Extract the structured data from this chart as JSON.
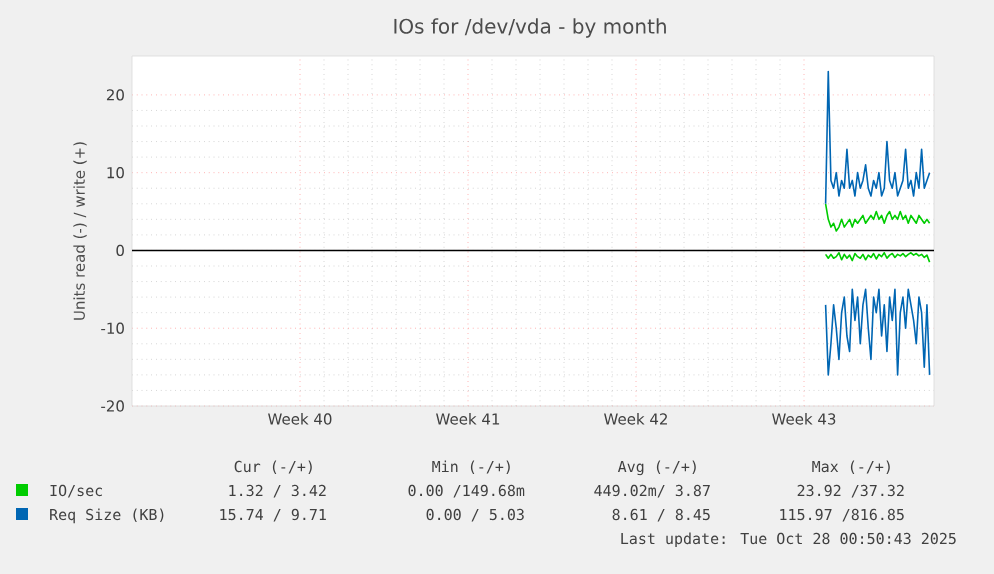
{
  "chart_data": {
    "type": "line",
    "title": "IOs for /dev/vda - by month",
    "ylabel": "Units read (-) / write (+)",
    "x": [
      "2025-10-24T09:36",
      "2025-10-24T12:16",
      "2025-10-24T14:56",
      "2025-10-24T17:36",
      "2025-10-24T20:16",
      "2025-10-24T22:56",
      "2025-10-25T01:36",
      "2025-10-25T04:16",
      "2025-10-25T06:56",
      "2025-10-25T09:36",
      "2025-10-25T12:16",
      "2025-10-25T14:56",
      "2025-10-25T17:36",
      "2025-10-25T20:16",
      "2025-10-25T22:56",
      "2025-10-26T01:36",
      "2025-10-26T04:16",
      "2025-10-26T06:56",
      "2025-10-26T09:36",
      "2025-10-26T12:16",
      "2025-10-26T14:56",
      "2025-10-26T17:36",
      "2025-10-26T20:16",
      "2025-10-26T22:56",
      "2025-10-27T01:36",
      "2025-10-27T04:16",
      "2025-10-27T06:56",
      "2025-10-27T09:36",
      "2025-10-27T12:16",
      "2025-10-27T14:56",
      "2025-10-27T17:36",
      "2025-10-27T20:16",
      "2025-10-27T22:56",
      "2025-10-28T01:36",
      "2025-10-28T04:16",
      "2025-10-28T06:56",
      "2025-10-28T09:36",
      "2025-10-28T12:16",
      "2025-10-28T14:56",
      "2025-10-28T17:36"
    ],
    "series": [
      {
        "name": "IO/sec",
        "color": "#00cc00",
        "values": [
          6,
          4,
          3,
          3.5,
          2.5,
          3,
          4,
          3,
          3.5,
          4,
          3,
          4,
          3.5,
          4,
          4.5,
          3.5,
          4,
          4.5,
          4,
          5,
          4,
          4.5,
          3.5,
          4.5,
          5,
          4,
          4.5,
          4,
          5,
          4,
          4.5,
          3.5,
          4.5,
          4,
          3.5,
          4.5,
          4,
          3.5,
          4,
          3.5
        ]
      },
      {
        "color": "#00cc00",
        "values": [
          -0.5,
          -1,
          -0.5,
          -1,
          -0.8,
          -0.3,
          -1.2,
          -0.5,
          -1,
          -0.6,
          -1.3,
          -0.4,
          -0.8,
          -1,
          -0.5,
          -1.2,
          -0.6,
          -0.9,
          -0.4,
          -1.1,
          -0.5,
          -0.8,
          -0.3,
          -1,
          -0.6,
          -0.4,
          -0.9,
          -0.5,
          -0.7,
          -0.4,
          -0.8,
          -0.5,
          -0.3,
          -0.6,
          -0.4,
          -0.7,
          -0.5,
          -0.9,
          -0.6,
          -1.5
        ]
      },
      {
        "name": "Req Size (KB)",
        "color": "#0066b3",
        "values": [
          6,
          23,
          9,
          8,
          10,
          7,
          9,
          8,
          13,
          8,
          9,
          7,
          10,
          8,
          9,
          11,
          8,
          7,
          9,
          8,
          10,
          7,
          8,
          14,
          9,
          8,
          10,
          7,
          8,
          9,
          13,
          8,
          9,
          7,
          10,
          8,
          13,
          8,
          9,
          10
        ]
      },
      {
        "color": "#0066b3",
        "values": [
          -7,
          -16,
          -12,
          -7,
          -10,
          -14,
          -8,
          -6,
          -11,
          -13,
          -5,
          -9,
          -6,
          -12,
          -7,
          -5,
          -10,
          -14,
          -6,
          -8,
          -5,
          -11,
          -7,
          -13,
          -6,
          -9,
          -5,
          -16,
          -8,
          -6,
          -10,
          -5,
          -7,
          -9,
          -12,
          -6,
          -8,
          -15,
          -7,
          -16
        ]
      }
    ],
    "xlim": [
      "2025-09-25T12:00",
      "2025-10-28T22:00"
    ],
    "xticks": [
      {
        "value": "2025-10-02T12:00",
        "label": "Week 40"
      },
      {
        "value": "2025-10-09T12:00",
        "label": "Week 41"
      },
      {
        "value": "2025-10-16T12:00",
        "label": "Week 42"
      },
      {
        "value": "2025-10-23T12:00",
        "label": "Week 43"
      }
    ],
    "ylim": [
      -20,
      25
    ],
    "yticks": [
      -20,
      -10,
      0,
      10,
      20
    ],
    "ref_lines": [
      {
        "axis": "y",
        "value": 0,
        "color": "#000000"
      }
    ],
    "grid": true,
    "legend": "bottom",
    "marker": "none",
    "line_style": "solid",
    "annotations": [
      "Cur (-/+)",
      "Min (-/+)",
      "Avg (-/+)",
      "Max (-/+)",
      "1.32 / 3.42",
      "0.00 /149.68m",
      "449.02m/ 3.87",
      "23.92 /37.32",
      "15.74 / 9.71",
      "0.00 / 5.03",
      "8.61 / 8.45",
      "115.97 /816.85",
      "Last update: Tue Oct 28 00:50:43 2025"
    ]
  }
}
